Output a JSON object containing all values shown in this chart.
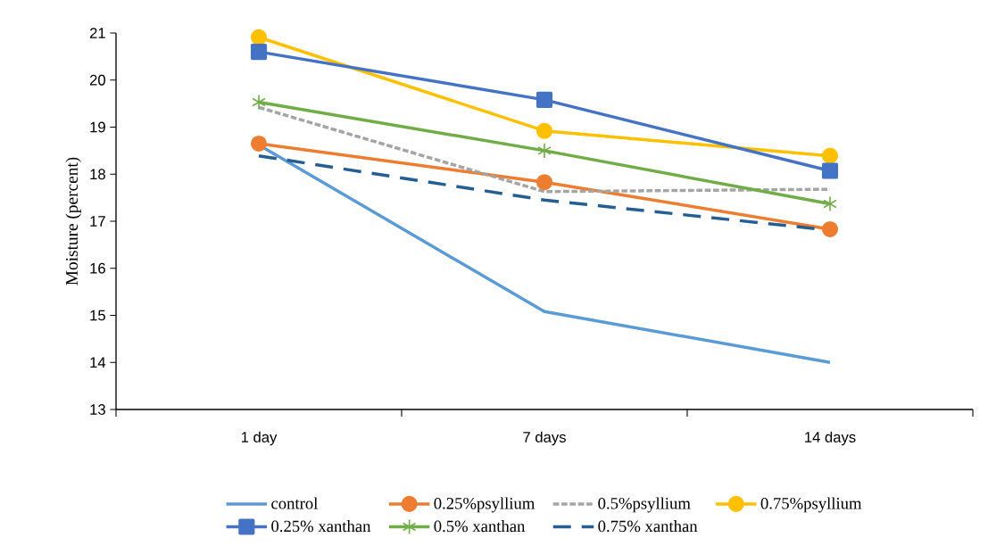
{
  "chart_data": {
    "type": "line",
    "ylabel": "Moisture (percent)",
    "categories": [
      "1 day",
      "7 days",
      "14 days"
    ],
    "ylim": [
      13,
      21
    ],
    "yticks": [
      13,
      14,
      15,
      16,
      17,
      18,
      19,
      20,
      21
    ],
    "legend": "bottom",
    "grid": false,
    "series": [
      {
        "name": "control",
        "color": "#5b9bd5",
        "values": [
          18.62,
          15.08,
          14.0
        ],
        "marker": "none",
        "line_style": "solid"
      },
      {
        "name": "0.25%psyllium",
        "color": "#ed7d31",
        "values": [
          18.65,
          17.83,
          16.83
        ],
        "marker": "circle",
        "line_style": "solid"
      },
      {
        "name": "0.5%psyllium",
        "color": "#a5a5a5",
        "values": [
          19.42,
          17.63,
          17.68
        ],
        "marker": "none",
        "line_style": "dotted"
      },
      {
        "name": "0.75%psyllium",
        "color": "#ffc000",
        "values": [
          20.91,
          18.92,
          18.39
        ],
        "marker": "circle",
        "line_style": "solid"
      },
      {
        "name": "0.25% xanthan",
        "color": "#4472c4",
        "values": [
          20.6,
          19.58,
          18.07
        ],
        "marker": "square",
        "line_style": "solid"
      },
      {
        "name": "0.5% xanthan",
        "color": "#70ad47",
        "values": [
          19.53,
          18.5,
          17.37
        ],
        "marker": "cross",
        "line_style": "solid"
      },
      {
        "name": "0.75% xanthan",
        "color": "#255e91",
        "values": [
          18.39,
          17.45,
          16.81
        ],
        "marker": "none",
        "line_style": "dashed"
      }
    ]
  }
}
